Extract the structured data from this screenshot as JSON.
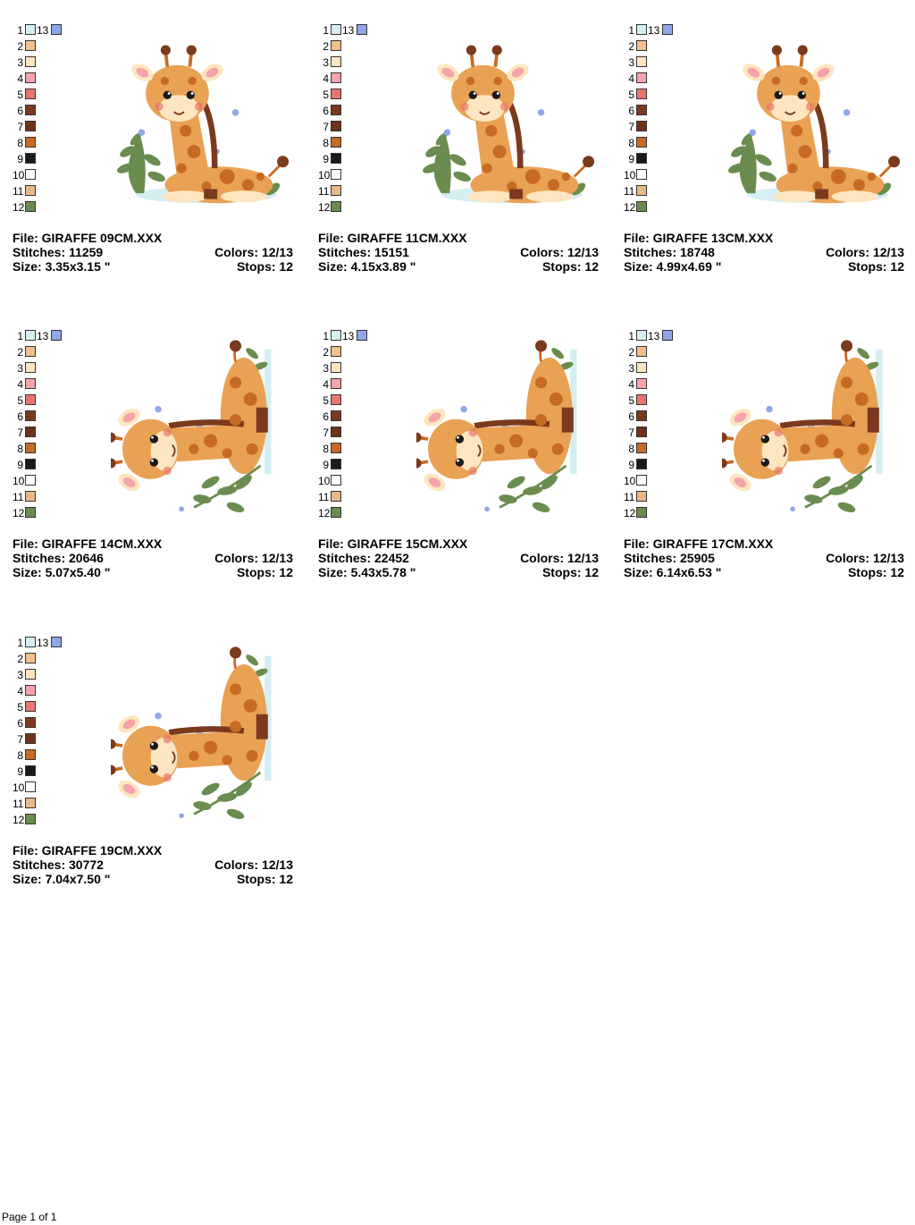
{
  "labels": {
    "file_prefix": "File:",
    "stitches_prefix": "Stitches:",
    "colors_prefix": "Colors:",
    "size_prefix": "Size:",
    "stops_prefix": "Stops:"
  },
  "palette": {
    "numbers": [
      "1",
      "2",
      "3",
      "4",
      "5",
      "6",
      "7",
      "8",
      "9",
      "10",
      "11",
      "12"
    ],
    "extra_number": "13",
    "colors": [
      "#d5eef2",
      "#f1c08c",
      "#fde6bf",
      "#f6a3ab",
      "#e8766e",
      "#7b3a1d",
      "#6e3218",
      "#c76a24",
      "#1a1a1a",
      "#ffffff",
      "#e9b889",
      "#6a8c4f"
    ],
    "extra_color": "#8fa6e8"
  },
  "designs": [
    {
      "file": "GIRAFFE 09CM.XXX",
      "stitches": "11259",
      "colors": "12/13",
      "size": "3.35x3.15 \"",
      "stops": "12",
      "pose": "sitting"
    },
    {
      "file": "GIRAFFE 11CM.XXX",
      "stitches": "15151",
      "colors": "12/13",
      "size": "4.15x3.89 \"",
      "stops": "12",
      "pose": "sitting"
    },
    {
      "file": "GIRAFFE 13CM.XXX",
      "stitches": "18748",
      "colors": "12/13",
      "size": "4.99x4.69 \"",
      "stops": "12",
      "pose": "sitting"
    },
    {
      "file": "GIRAFFE 14CM.XXX",
      "stitches": "20646",
      "colors": "12/13",
      "size": "5.07x5.40 \"",
      "stops": "12",
      "pose": "rotated"
    },
    {
      "file": "GIRAFFE 15CM.XXX",
      "stitches": "22452",
      "colors": "12/13",
      "size": "5.43x5.78 \"",
      "stops": "12",
      "pose": "rotated"
    },
    {
      "file": "GIRAFFE 17CM.XXX",
      "stitches": "25905",
      "colors": "12/13",
      "size": "6.14x6.53 \"",
      "stops": "12",
      "pose": "rotated"
    },
    {
      "file": "GIRAFFE 19CM.XXX",
      "stitches": "30772",
      "colors": "12/13",
      "size": "7.04x7.50 \"",
      "stops": "12",
      "pose": "rotated"
    }
  ],
  "footer": "Page 1 of 1"
}
